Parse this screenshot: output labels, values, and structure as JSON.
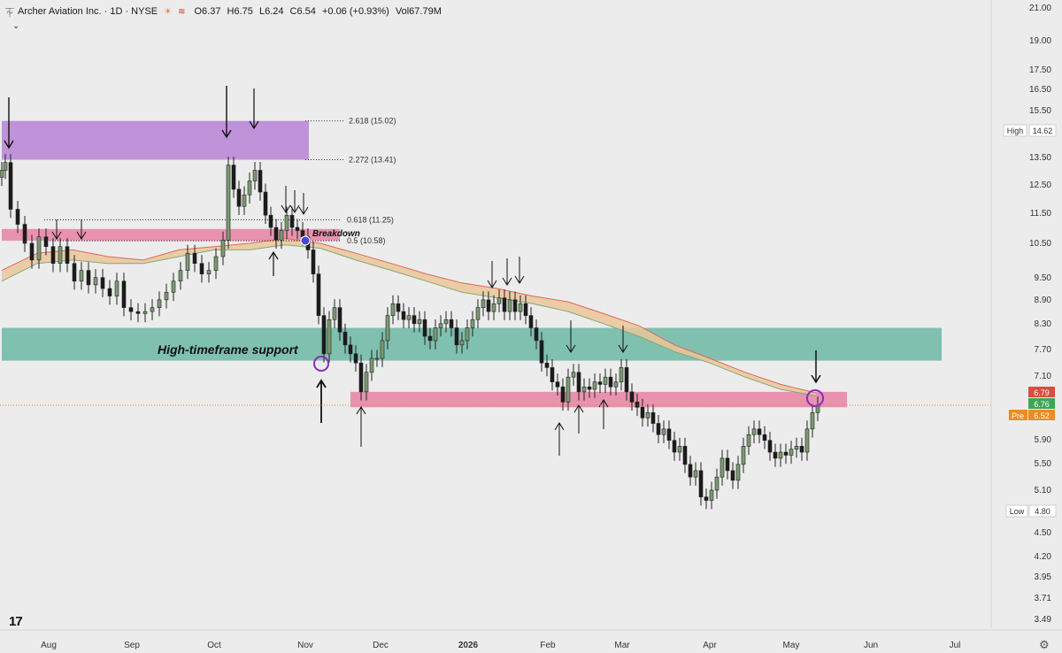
{
  "header": {
    "logo_icon": "archer-logo-icon",
    "title": "Archer Aviation Inc. · 1D · NYSE",
    "flag_icons": [
      "sun-flag-icon",
      "wave-flag-icon"
    ],
    "open": "O6.37",
    "high": "H6.75",
    "low": "L6.24",
    "close": "C6.54",
    "change": "+0.06 (+0.93%)",
    "volume": "Vol67.79M",
    "collapse_icon": "chevron-down-icon"
  },
  "colors": {
    "candle_up": "#7a9a72",
    "candle_down": "#1b1b1b",
    "cloud": "#eac79a",
    "cloud_top": "#e0675a",
    "cloud_bottom": "#86a778",
    "purple_zone": "#b883d6",
    "pink_zone": "#e883a6",
    "teal_zone": "#6cb8a4",
    "price_current": "#e04a3f",
    "price_last": "#3fa655",
    "price_pre": "#f08a24"
  },
  "chart_data": {
    "type": "candlestick",
    "symbol": "Archer Aviation Inc.",
    "interval": "1D",
    "exchange": "NYSE",
    "x_labels": [
      "Aug",
      "Sep",
      "Oct",
      "Nov",
      "Dec",
      "2026",
      "Feb",
      "Mar",
      "Apr",
      "May",
      "Jun",
      "Jul"
    ],
    "y_scale": "log",
    "y_ticks": [
      "21.00",
      "19.00",
      "17.50",
      "16.50",
      "15.50",
      "13.50",
      "12.50",
      "11.50",
      "10.50",
      "9.50",
      "8.90",
      "8.30",
      "7.70",
      "7.10",
      "5.90",
      "5.50",
      "5.10",
      "4.50",
      "4.20",
      "3.95",
      "3.71",
      "3.49"
    ],
    "price_badges": [
      {
        "label": "High",
        "value": "14.62"
      },
      {
        "label": "Low",
        "value": "4.80"
      },
      {
        "label": "",
        "value": "6.79"
      },
      {
        "label": "",
        "value": "6.76"
      },
      {
        "label": "Pre",
        "value": "6.52"
      }
    ],
    "fib_levels": [
      {
        "label": "2.618 (15.02)",
        "value": 15.02
      },
      {
        "label": "2.272 (13.41)",
        "value": 13.41
      },
      {
        "label": "0.618 (11.25)",
        "value": 11.25
      },
      {
        "label": "0.5 (10.58)",
        "value": 10.58
      }
    ],
    "zones": [
      {
        "name": "purple-resistance",
        "from": 13.41,
        "to": 15.02
      },
      {
        "name": "pink-breakdown",
        "from": 10.58,
        "to": 10.95
      },
      {
        "name": "teal-support",
        "from": 7.45,
        "to": 8.2
      },
      {
        "name": "pink-lower",
        "from": 6.5,
        "to": 6.8
      }
    ],
    "annotations": [
      "Breakdown",
      "High-timeframe support"
    ],
    "price_path": [
      [
        0,
        13.0
      ],
      [
        4,
        13.3
      ],
      [
        10,
        11.6
      ],
      [
        18,
        11.1
      ],
      [
        26,
        10.5
      ],
      [
        34,
        10.0
      ],
      [
        42,
        10.7
      ],
      [
        50,
        10.4
      ],
      [
        58,
        9.9
      ],
      [
        66,
        10.4
      ],
      [
        74,
        9.9
      ],
      [
        82,
        9.4
      ],
      [
        90,
        9.7
      ],
      [
        98,
        9.3
      ],
      [
        106,
        9.5
      ],
      [
        114,
        9.2
      ],
      [
        122,
        9.0
      ],
      [
        130,
        9.4
      ],
      [
        138,
        8.7
      ],
      [
        146,
        8.6
      ],
      [
        154,
        8.55
      ],
      [
        162,
        8.6
      ],
      [
        170,
        8.7
      ],
      [
        178,
        8.9
      ],
      [
        186,
        9.1
      ],
      [
        194,
        9.4
      ],
      [
        202,
        9.7
      ],
      [
        210,
        10.2
      ],
      [
        218,
        9.9
      ],
      [
        226,
        9.6
      ],
      [
        234,
        9.7
      ],
      [
        242,
        10.1
      ],
      [
        250,
        10.6
      ],
      [
        256,
        13.2
      ],
      [
        262,
        12.3
      ],
      [
        268,
        11.7
      ],
      [
        274,
        12.1
      ],
      [
        280,
        12.6
      ],
      [
        286,
        13.0
      ],
      [
        292,
        12.2
      ],
      [
        298,
        11.4
      ],
      [
        304,
        11.0
      ],
      [
        310,
        10.6
      ],
      [
        316,
        10.9
      ],
      [
        322,
        11.4
      ],
      [
        328,
        11.0
      ],
      [
        334,
        10.9
      ],
      [
        340,
        10.7
      ],
      [
        346,
        10.3
      ],
      [
        352,
        9.6
      ],
      [
        358,
        8.5
      ],
      [
        364,
        7.6
      ],
      [
        370,
        8.4
      ],
      [
        376,
        8.7
      ],
      [
        382,
        8.1
      ],
      [
        388,
        7.8
      ],
      [
        394,
        7.6
      ],
      [
        400,
        7.4
      ],
      [
        406,
        6.8
      ],
      [
        412,
        7.2
      ],
      [
        418,
        7.5
      ],
      [
        424,
        7.5
      ],
      [
        430,
        7.9
      ],
      [
        436,
        8.5
      ],
      [
        442,
        8.8
      ],
      [
        448,
        8.6
      ],
      [
        454,
        8.4
      ],
      [
        460,
        8.5
      ],
      [
        466,
        8.3
      ],
      [
        472,
        8.4
      ],
      [
        478,
        8.0
      ],
      [
        484,
        7.9
      ],
      [
        490,
        8.2
      ],
      [
        496,
        8.3
      ],
      [
        502,
        8.4
      ],
      [
        508,
        8.2
      ],
      [
        514,
        7.8
      ],
      [
        520,
        7.9
      ],
      [
        526,
        8.2
      ],
      [
        532,
        8.4
      ],
      [
        538,
        8.7
      ],
      [
        544,
        8.9
      ],
      [
        550,
        8.6
      ],
      [
        556,
        8.8
      ],
      [
        562,
        8.95
      ],
      [
        568,
        8.6
      ],
      [
        574,
        8.9
      ],
      [
        580,
        8.6
      ],
      [
        586,
        8.8
      ],
      [
        592,
        8.5
      ],
      [
        598,
        8.2
      ],
      [
        604,
        7.9
      ],
      [
        610,
        7.4
      ],
      [
        616,
        7.3
      ],
      [
        622,
        7.0
      ],
      [
        628,
        6.9
      ],
      [
        634,
        6.6
      ],
      [
        640,
        7.1
      ],
      [
        646,
        7.2
      ],
      [
        652,
        6.8
      ],
      [
        658,
        6.9
      ],
      [
        664,
        6.85
      ],
      [
        670,
        7.0
      ],
      [
        676,
        6.95
      ],
      [
        682,
        7.1
      ],
      [
        688,
        6.9
      ],
      [
        694,
        7.0
      ],
      [
        700,
        7.3
      ],
      [
        706,
        6.8
      ],
      [
        712,
        6.6
      ],
      [
        718,
        6.5
      ],
      [
        724,
        6.3
      ],
      [
        730,
        6.4
      ],
      [
        736,
        6.2
      ],
      [
        742,
        6.0
      ],
      [
        748,
        6.1
      ],
      [
        754,
        5.9
      ],
      [
        760,
        5.7
      ],
      [
        766,
        5.8
      ],
      [
        772,
        5.5
      ],
      [
        778,
        5.3
      ],
      [
        784,
        5.4
      ],
      [
        790,
        5.0
      ],
      [
        796,
        4.95
      ],
      [
        802,
        5.1
      ],
      [
        808,
        5.3
      ],
      [
        814,
        5.6
      ],
      [
        820,
        5.4
      ],
      [
        826,
        5.25
      ],
      [
        832,
        5.5
      ],
      [
        838,
        5.8
      ],
      [
        844,
        6.0
      ],
      [
        850,
        6.1
      ],
      [
        856,
        6.0
      ],
      [
        862,
        5.9
      ],
      [
        868,
        5.7
      ],
      [
        874,
        5.6
      ],
      [
        880,
        5.7
      ],
      [
        886,
        5.65
      ],
      [
        892,
        5.75
      ],
      [
        898,
        5.8
      ],
      [
        904,
        5.7
      ],
      [
        910,
        6.1
      ],
      [
        916,
        6.4
      ],
      [
        922,
        6.54
      ]
    ],
    "cloud": [
      [
        0,
        9.7,
        9.4
      ],
      [
        40,
        10.2,
        9.9
      ],
      [
        80,
        10.3,
        10.0
      ],
      [
        120,
        10.1,
        9.9
      ],
      [
        160,
        10.0,
        9.9
      ],
      [
        200,
        10.3,
        10.1
      ],
      [
        240,
        10.4,
        10.3
      ],
      [
        280,
        10.5,
        10.3
      ],
      [
        320,
        10.65,
        10.45
      ],
      [
        360,
        10.5,
        10.35
      ],
      [
        400,
        10.2,
        10.0
      ],
      [
        440,
        9.9,
        9.7
      ],
      [
        480,
        9.6,
        9.4
      ],
      [
        520,
        9.35,
        9.1
      ],
      [
        560,
        9.2,
        8.95
      ],
      [
        600,
        9.0,
        8.8
      ],
      [
        640,
        8.85,
        8.6
      ],
      [
        680,
        8.55,
        8.3
      ],
      [
        720,
        8.25,
        8.0
      ],
      [
        760,
        7.8,
        7.65
      ],
      [
        800,
        7.5,
        7.4
      ],
      [
        840,
        7.2,
        7.1
      ],
      [
        880,
        6.95,
        6.85
      ],
      [
        920,
        6.78,
        6.72
      ]
    ]
  },
  "axis_labels_text": {
    "fib_2618": "2.618 (15.02)",
    "fib_2272": "2.272 (13.41)",
    "fib_0618": "0.618 (11.25)",
    "fib_05": "0.5 (10.58)",
    "breakdown": "Breakdown",
    "support": "High-timeframe support"
  },
  "footer": {
    "tv_logo_icon": "tradingview-logo-icon",
    "settings_icon": "gear-icon"
  }
}
